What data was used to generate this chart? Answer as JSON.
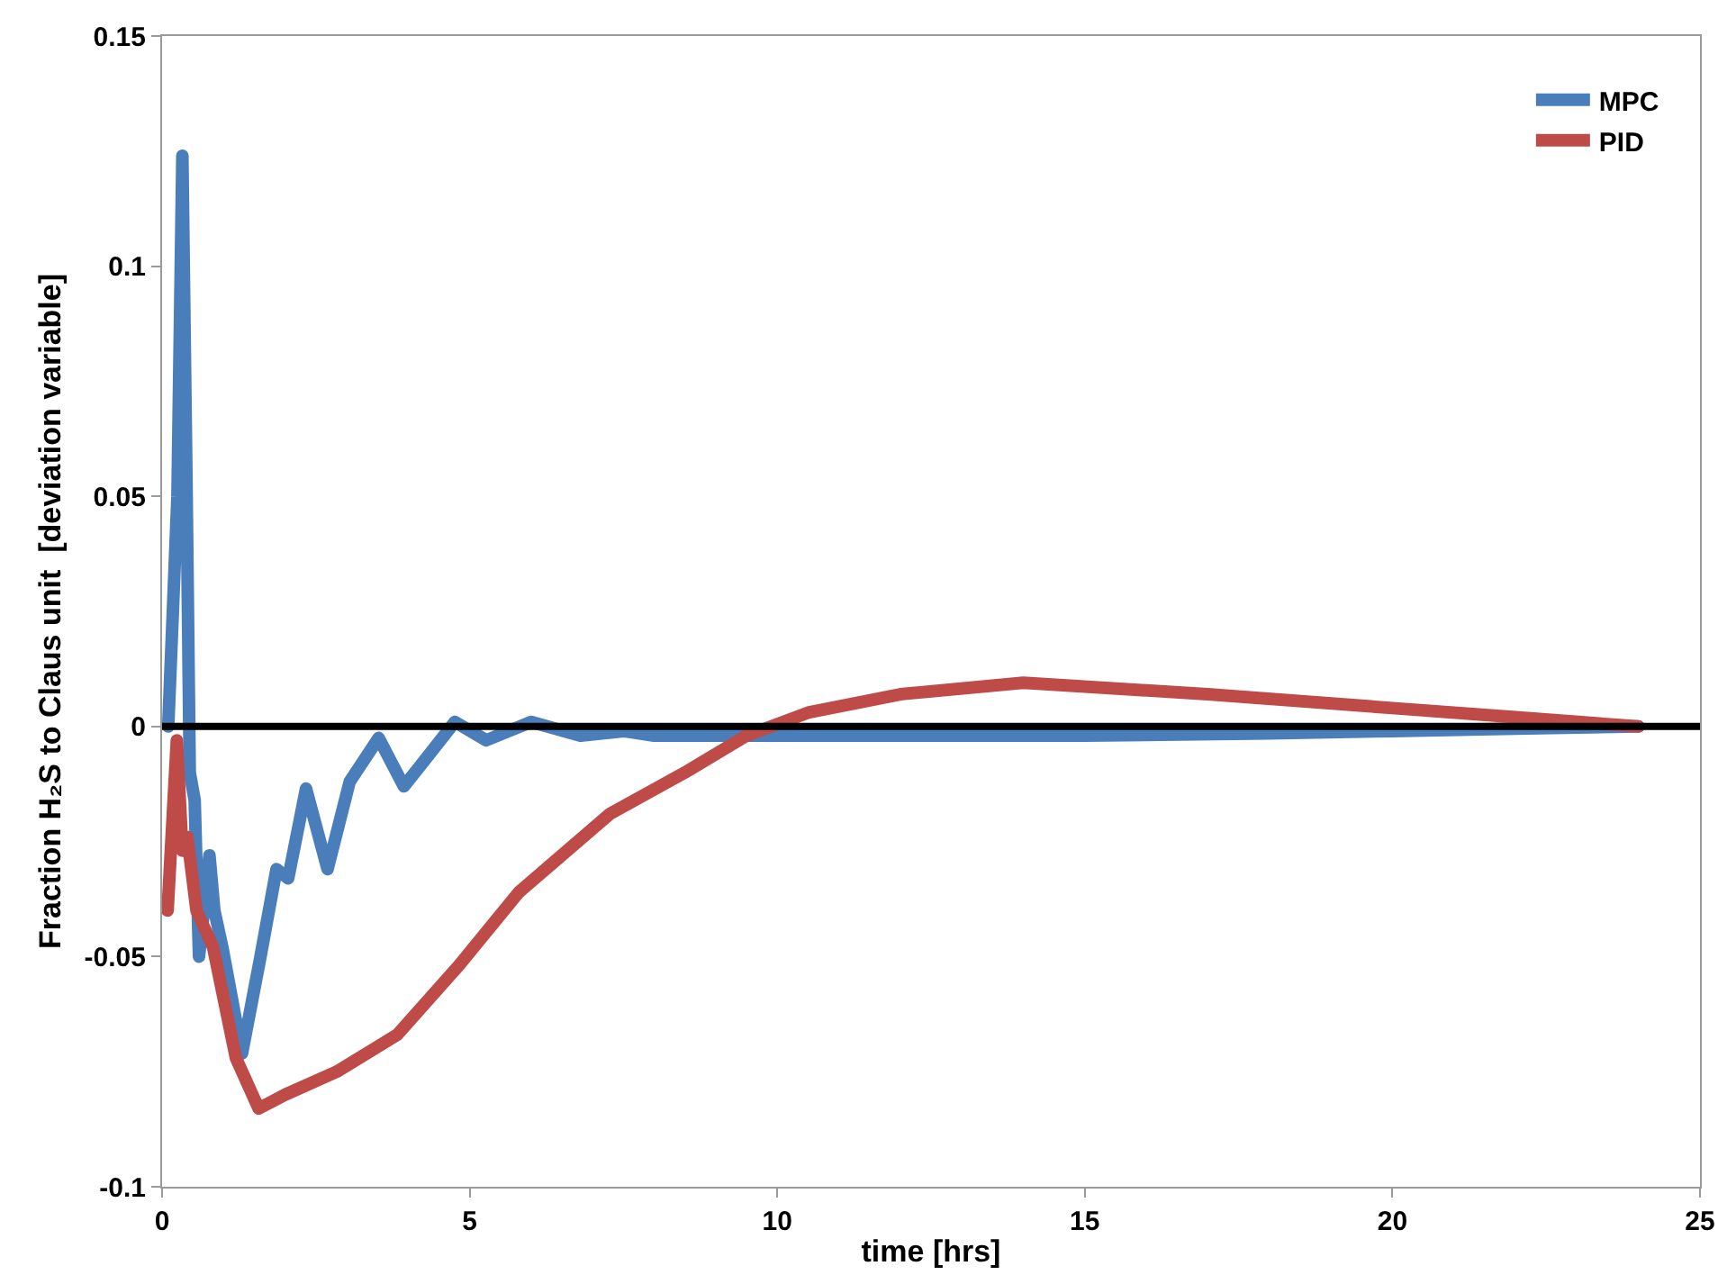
{
  "chart_data": {
    "type": "line",
    "xlabel": "time [hrs]",
    "ylabel": "Fraction H₂S to Claus unit  [deviation variable]",
    "xlim": [
      0,
      25
    ],
    "xticks": [
      0,
      5,
      10,
      15,
      20,
      25
    ],
    "ylim": [
      -0.1,
      0.15
    ],
    "yticks": [
      -0.1,
      -0.05,
      0,
      0.05,
      0.1,
      0.15
    ],
    "legend": "top right",
    "marker": "none",
    "line_style": "solid",
    "ref_lines": [
      {
        "axis": "y",
        "value": 0,
        "color": "#000000"
      }
    ],
    "series": [
      {
        "name": "MPC",
        "color": "#4a7ebb",
        "x": [
          0.1,
          0.25,
          0.33,
          0.4,
          0.45,
          0.53,
          0.6,
          0.68,
          0.77,
          0.85,
          0.98,
          1.3,
          1.6,
          1.86,
          2.05,
          2.34,
          2.69,
          3.05,
          3.52,
          3.93,
          4.23,
          4.76,
          5.27,
          6.0,
          6.8,
          7.5,
          8.0,
          10,
          12,
          15,
          18,
          20,
          22,
          24
        ],
        "values": [
          0.0,
          0.05,
          0.124,
          0.05,
          -0.01,
          -0.016,
          -0.05,
          -0.04,
          -0.028,
          -0.04,
          -0.048,
          -0.071,
          -0.05,
          -0.031,
          -0.033,
          -0.0135,
          -0.031,
          -0.012,
          -0.0025,
          -0.013,
          -0.008,
          0.001,
          -0.003,
          0.001,
          -0.002,
          -0.001,
          -0.002,
          -0.002,
          -0.002,
          -0.002,
          -0.0015,
          -0.001,
          -0.0005,
          0.0
        ]
      },
      {
        "name": "PID",
        "color": "#be4b48",
        "x": [
          0.09,
          0.24,
          0.33,
          0.41,
          0.56,
          0.83,
          1.2,
          1.57,
          2.0,
          2.84,
          3.82,
          4.82,
          5.8,
          7.28,
          8.5,
          9.5,
          10.5,
          12,
          14,
          17,
          20,
          22,
          24
        ],
        "values": [
          -0.04,
          -0.003,
          -0.027,
          -0.024,
          -0.04,
          -0.048,
          -0.072,
          -0.083,
          -0.08,
          -0.075,
          -0.067,
          -0.052,
          -0.036,
          -0.019,
          -0.01,
          -0.002,
          0.003,
          0.007,
          0.0095,
          0.007,
          0.004,
          0.002,
          0.0
        ]
      }
    ]
  }
}
